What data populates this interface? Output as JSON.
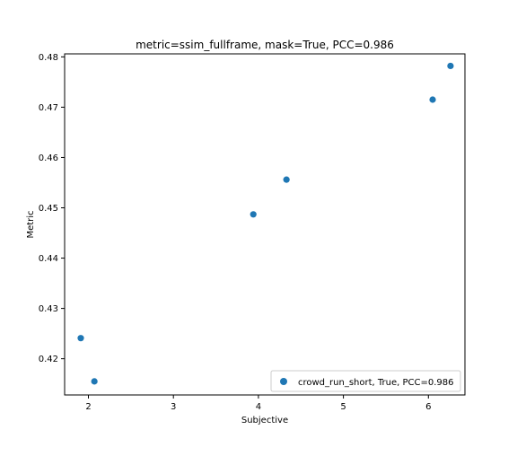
{
  "chart_data": {
    "type": "scatter",
    "title": "metric=ssim_fullframe, mask=True, PCC=0.986",
    "xlabel": "Subjective",
    "ylabel": "Metric",
    "xlim": [
      1.72,
      6.43
    ],
    "ylim": [
      0.4128,
      0.4806
    ],
    "xticks": [
      2,
      3,
      4,
      5,
      6
    ],
    "yticks": [
      0.42,
      0.43,
      0.44,
      0.45,
      0.46,
      0.47,
      0.48
    ],
    "xtick_labels": [
      "2",
      "3",
      "4",
      "5",
      "6"
    ],
    "ytick_labels": [
      "0.42",
      "0.43",
      "0.44",
      "0.45",
      "0.46",
      "0.47",
      "0.48"
    ],
    "grid": false,
    "legend_position": "lower-right",
    "series": [
      {
        "name": "crowd_run_short, True,  PCC=0.986",
        "color": "#1f77b4",
        "points": [
          {
            "x": 1.91,
            "y": 0.4241
          },
          {
            "x": 2.07,
            "y": 0.4155
          },
          {
            "x": 3.94,
            "y": 0.4487
          },
          {
            "x": 4.33,
            "y": 0.4556
          },
          {
            "x": 6.05,
            "y": 0.4715
          },
          {
            "x": 6.26,
            "y": 0.4782
          }
        ]
      }
    ]
  }
}
